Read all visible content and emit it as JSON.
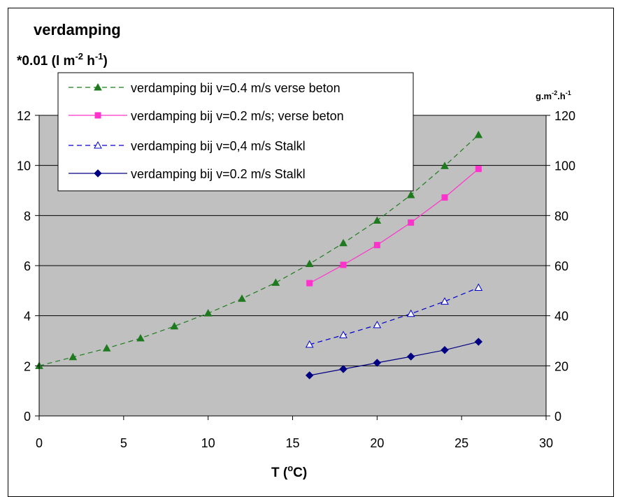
{
  "chart_data": {
    "type": "line",
    "title": "verdamping",
    "ylabel_left": "*0.01 (l m-2 h-1)",
    "ylabel_left_parts": {
      "pre": "*0.01 (l m",
      "sup1": "-2",
      "mid": " h",
      "sup2": "-1",
      "post": ")"
    },
    "ylabel_right": "g.m-2.h-1",
    "ylabel_right_parts": {
      "pre": "g.m",
      "sup1": "-2",
      "mid": ".h",
      "sup2": "-1"
    },
    "xlabel": "T (oC)",
    "xlabel_parts": {
      "pre": "T (",
      "sup": "o",
      "post": "C)"
    },
    "xlim": [
      0,
      30
    ],
    "ylim_left": [
      0,
      12
    ],
    "ylim_right": [
      0,
      120
    ],
    "xticks": [
      "0",
      "5",
      "10",
      "15",
      "20",
      "25",
      "30"
    ],
    "yticks_left": [
      "0",
      "2",
      "4",
      "6",
      "8",
      "10",
      "12"
    ],
    "yticks_right": [
      "0",
      "20",
      "40",
      "60",
      "80",
      "100",
      "120"
    ],
    "plot_background": "#c0c0c0",
    "grid": "horizontal",
    "legend_position": "top-left",
    "series": [
      {
        "name": "verdamping bij v=0.4 m/s verse beton",
        "color": "#1f7a1f",
        "dash": "dashed",
        "marker": "triangle-filled",
        "x": [
          0,
          2,
          4,
          6,
          8,
          10,
          12,
          14,
          16,
          18,
          20,
          22,
          24,
          26
        ],
        "y": [
          2.0,
          2.35,
          2.7,
          3.1,
          3.58,
          4.1,
          4.68,
          5.32,
          6.07,
          6.9,
          7.8,
          8.82,
          9.98,
          11.22
        ]
      },
      {
        "name": "verdamping bij v=0.2 m/s; verse beton",
        "color": "#ff33cc",
        "dash": "solid",
        "marker": "square-filled",
        "x": [
          16,
          18,
          20,
          22,
          24,
          26
        ],
        "y": [
          5.3,
          6.03,
          6.82,
          7.72,
          8.72,
          9.86
        ]
      },
      {
        "name": "verdamping bij v=0,4 m/s Stalkl",
        "color": "#0000cc",
        "dash": "dashed",
        "marker": "triangle-open",
        "x": [
          16,
          18,
          20,
          22,
          24,
          26
        ],
        "y": [
          2.85,
          3.23,
          3.63,
          4.08,
          4.57,
          5.12
        ]
      },
      {
        "name": "verdamping bij v=0.2 m/s Stalkl",
        "color": "#000080",
        "dash": "solid",
        "marker": "diamond-filled",
        "x": [
          16,
          18,
          20,
          22,
          24,
          26
        ],
        "y": [
          1.62,
          1.87,
          2.12,
          2.37,
          2.63,
          2.96
        ]
      }
    ]
  }
}
